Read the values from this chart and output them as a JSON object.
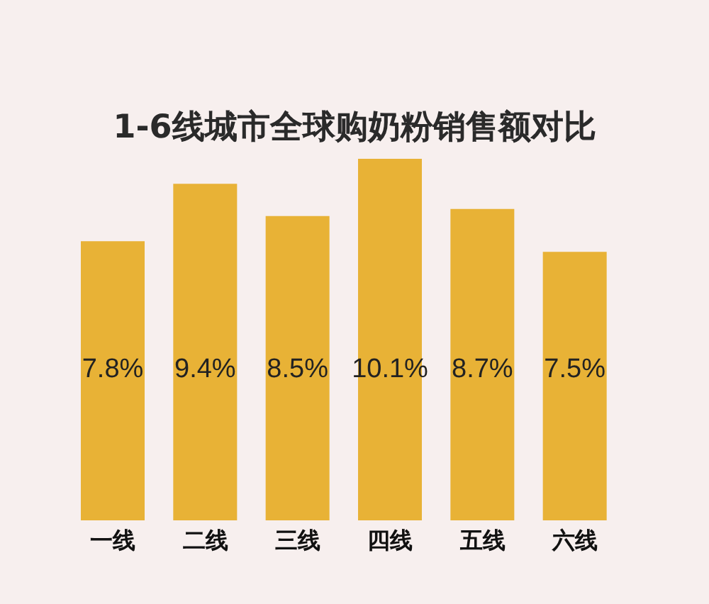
{
  "chart_data": {
    "type": "bar",
    "title": "1-6线城市全球购奶粉销售额对比",
    "categories": [
      "一线",
      "二线",
      "三线",
      "四线",
      "五线",
      "六线"
    ],
    "values": [
      7.8,
      9.4,
      8.5,
      10.1,
      8.7,
      7.5
    ],
    "value_labels": [
      "7.8%",
      "9.4%",
      "8.5%",
      "10.1%",
      "8.7%",
      "7.5%"
    ],
    "color": "#e8b236"
  }
}
